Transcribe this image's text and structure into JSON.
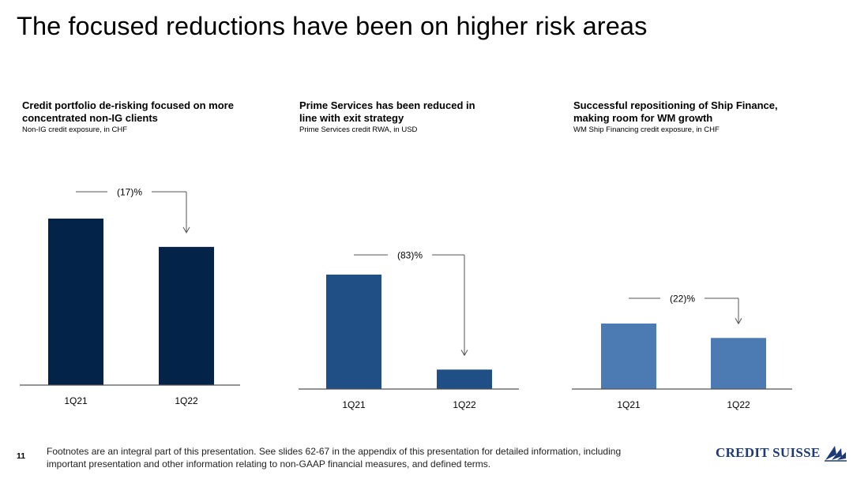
{
  "page": {
    "title": "The focused reductions have been on higher risk areas",
    "page_number": "11",
    "footnote": "Footnotes are an integral part of this presentation. See slides 62-67 in the appendix of this presentation for detailed information, including important presentation and other information relating to non-GAAP financial measures, and defined terms.",
    "logo_text": "CREDIT SUISSE"
  },
  "panels": [
    {
      "heading": "Credit portfolio de-risking focused on more concentrated non-IG clients",
      "subheading": "Non-IG credit exposure, in CHF"
    },
    {
      "heading": "Prime Services has been reduced in line with exit strategy",
      "subheading": "Prime Services credit RWA, in USD"
    },
    {
      "heading": "Successful repositioning of Ship Finance, making room for WM growth",
      "subheading": "WM Ship Financing credit exposure, in CHF"
    }
  ],
  "chart_data": [
    {
      "type": "bar",
      "title": "Credit portfolio de-risking focused on more concentrated non-IG clients",
      "subtitle": "Non-IG credit exposure, in CHF",
      "categories": [
        "1Q21",
        "1Q22"
      ],
      "values": [
        100,
        83
      ],
      "change_label": "(17)%",
      "color": "#032448",
      "ylim": [
        0,
        100
      ]
    },
    {
      "type": "bar",
      "title": "Prime Services has been reduced in line with exit strategy",
      "subtitle": "Prime Services credit RWA, in USD",
      "categories": [
        "1Q21",
        "1Q22"
      ],
      "values": [
        100,
        17
      ],
      "change_label": "(83)%",
      "color": "#1f4f85",
      "ylim": [
        0,
        100
      ]
    },
    {
      "type": "bar",
      "title": "Successful repositioning of Ship Finance, making room for WM growth",
      "subtitle": "WM Ship Financing credit exposure, in CHF",
      "categories": [
        "1Q21",
        "1Q22"
      ],
      "values": [
        100,
        78
      ],
      "change_label": "(22)%",
      "color": "#4c7ab3",
      "ylim": [
        0,
        100
      ]
    }
  ]
}
